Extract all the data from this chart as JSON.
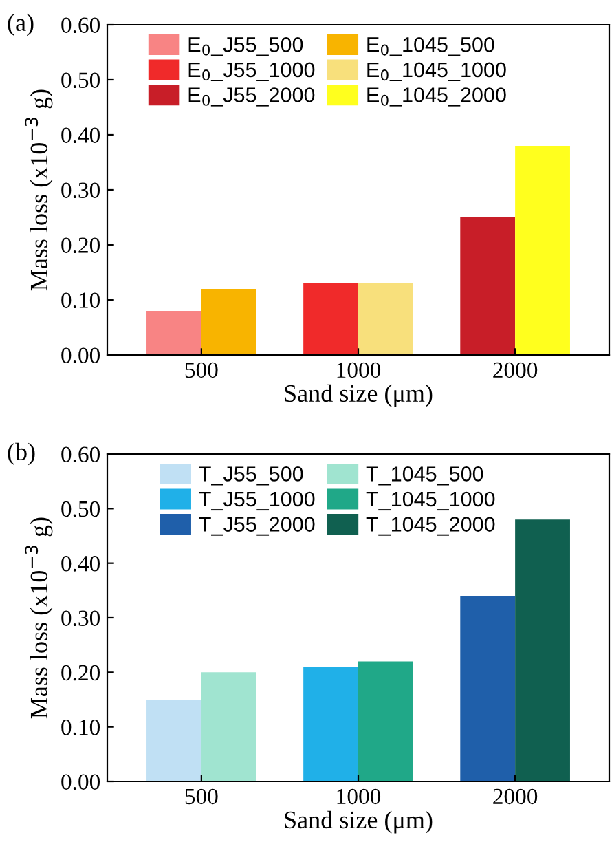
{
  "chart_data": [
    {
      "type": "bar",
      "annotations": [
        "(a)"
      ],
      "xlabel": "Sand size (μm)",
      "ylabel": "Mass loss (x10$^{−3}$ g)",
      "categories": [
        "500",
        "1000",
        "2000"
      ],
      "ylim": [
        0,
        0.6
      ],
      "yticks": [
        {
          "value": 0,
          "label": "0.00"
        },
        {
          "value": 0.1,
          "label": "0.10"
        },
        {
          "value": 0.2,
          "label": "0.20"
        },
        {
          "value": 0.3,
          "label": "0.30"
        },
        {
          "value": 0.4,
          "label": "0.40"
        },
        {
          "value": 0.5,
          "label": "0.50"
        },
        {
          "value": 0.6,
          "label": "0.60"
        }
      ],
      "legend": "top",
      "grid": false,
      "series": [
        {
          "name": "E$_{0}$_J55_500",
          "color": "#f88484",
          "values": [
            0.08,
            null,
            null
          ]
        },
        {
          "name": "E$_{0}$_J55_1000",
          "color": "#f02a2a",
          "values": [
            null,
            0.13,
            null
          ]
        },
        {
          "name": "E$_{0}$_J55_2000",
          "color": "#c81e28",
          "values": [
            null,
            null,
            0.25
          ]
        },
        {
          "name": "E$_{0}$_1045_500",
          "color": "#f8b400",
          "values": [
            0.12,
            null,
            null
          ]
        },
        {
          "name": "E$_{0}$_1045_1000",
          "color": "#f8e07c",
          "values": [
            null,
            0.13,
            null
          ]
        },
        {
          "name": "E$_{0}$_1045_2000",
          "color": "#ffff1e",
          "values": [
            null,
            null,
            0.38
          ]
        }
      ]
    },
    {
      "type": "bar",
      "annotations": [
        "(b)"
      ],
      "xlabel": "Sand size (μm)",
      "ylabel": "Mass loss (x10$^{−3}$ g)",
      "categories": [
        "500",
        "1000",
        "2000"
      ],
      "ylim": [
        0,
        0.6
      ],
      "yticks": [
        {
          "value": 0,
          "label": "0.00"
        },
        {
          "value": 0.1,
          "label": "0.10"
        },
        {
          "value": 0.2,
          "label": "0.20"
        },
        {
          "value": 0.3,
          "label": "0.30"
        },
        {
          "value": 0.4,
          "label": "0.40"
        },
        {
          "value": 0.5,
          "label": "0.50"
        },
        {
          "value": 0.6,
          "label": "0.60"
        }
      ],
      "legend": "top",
      "grid": false,
      "series": [
        {
          "name": "T_J55_500",
          "color": "#c0e0f4",
          "values": [
            0.15,
            null,
            null
          ]
        },
        {
          "name": "T_J55_1000",
          "color": "#20b0e8",
          "values": [
            null,
            0.21,
            null
          ]
        },
        {
          "name": "T_J55_2000",
          "color": "#1f5faa",
          "values": [
            null,
            null,
            0.34
          ]
        },
        {
          "name": "T_1045_500",
          "color": "#a0e4d0",
          "values": [
            0.2,
            null,
            null
          ]
        },
        {
          "name": "T_1045_1000",
          "color": "#20a888",
          "values": [
            null,
            0.22,
            null
          ]
        },
        {
          "name": "T_1045_2000",
          "color": "#106050",
          "values": [
            null,
            null,
            0.48
          ]
        }
      ]
    }
  ]
}
